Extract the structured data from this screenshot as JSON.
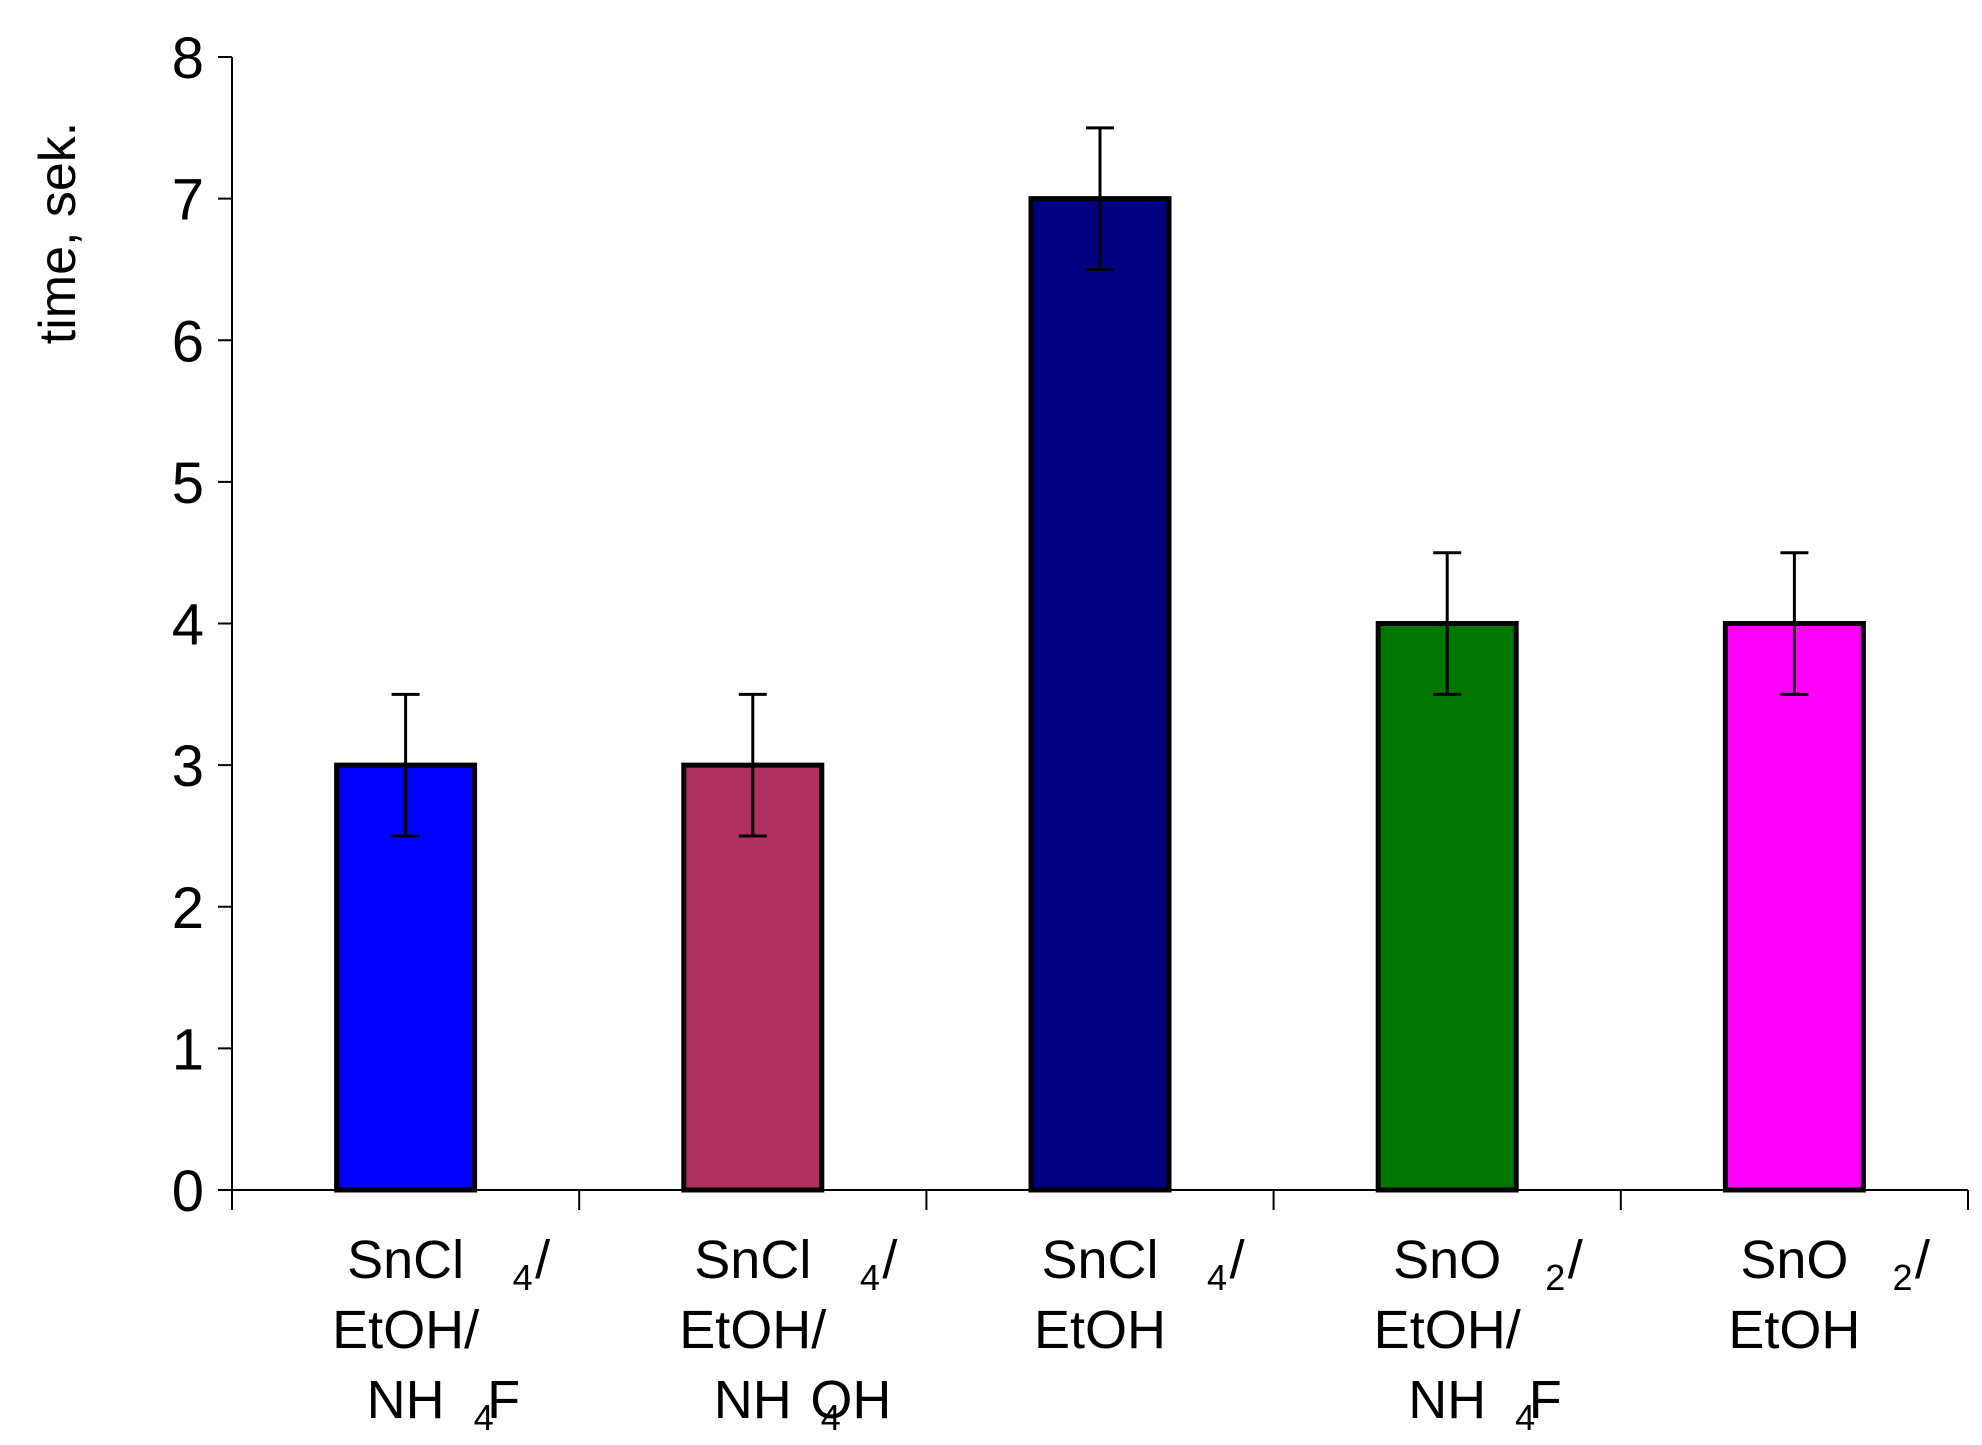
{
  "chart_data": {
    "type": "bar",
    "title": "",
    "xlabel": "",
    "ylabel": "time, sek.",
    "ylim": [
      0,
      8
    ],
    "yticks": [
      "0",
      "1",
      "2",
      "3",
      "4",
      "5",
      "6",
      "7",
      "8"
    ],
    "grid": false,
    "categories": [
      {
        "lines": [
          [
            [
              "SnCl",
              false
            ],
            [
              "4",
              true
            ],
            [
              "/",
              false
            ]
          ],
          [
            [
              "EtOH/",
              false
            ]
          ],
          [
            [
              "NH",
              false
            ],
            [
              "4",
              true
            ],
            [
              "F",
              false
            ]
          ]
        ]
      },
      {
        "lines": [
          [
            [
              "SnCl",
              false
            ],
            [
              "4",
              true
            ],
            [
              "/",
              false
            ]
          ],
          [
            [
              "EtOH/",
              false
            ]
          ],
          [
            [
              "NH",
              false
            ],
            [
              "4",
              true
            ],
            [
              "OH",
              false
            ]
          ]
        ]
      },
      {
        "lines": [
          [
            [
              "SnCl",
              false
            ],
            [
              "4",
              true
            ],
            [
              "/",
              false
            ]
          ],
          [
            [
              "EtOH",
              false
            ]
          ]
        ]
      },
      {
        "lines": [
          [
            [
              "SnO",
              false
            ],
            [
              "2",
              true
            ],
            [
              "/",
              false
            ]
          ],
          [
            [
              "EtOH/",
              false
            ]
          ],
          [
            [
              "NH",
              false
            ],
            [
              "4",
              true
            ],
            [
              "F",
              false
            ]
          ]
        ]
      },
      {
        "lines": [
          [
            [
              "SnO",
              false
            ],
            [
              "2",
              true
            ],
            [
              "/",
              false
            ]
          ],
          [
            [
              "EtOH",
              false
            ]
          ]
        ]
      }
    ],
    "values": [
      3,
      3,
      7,
      4,
      4
    ],
    "errors": [
      0.5,
      0.5,
      0.5,
      0.5,
      0.5
    ],
    "colors": [
      "#0000ff",
      "#b03060",
      "#000080",
      "#007800",
      "#ff00ff"
    ]
  }
}
